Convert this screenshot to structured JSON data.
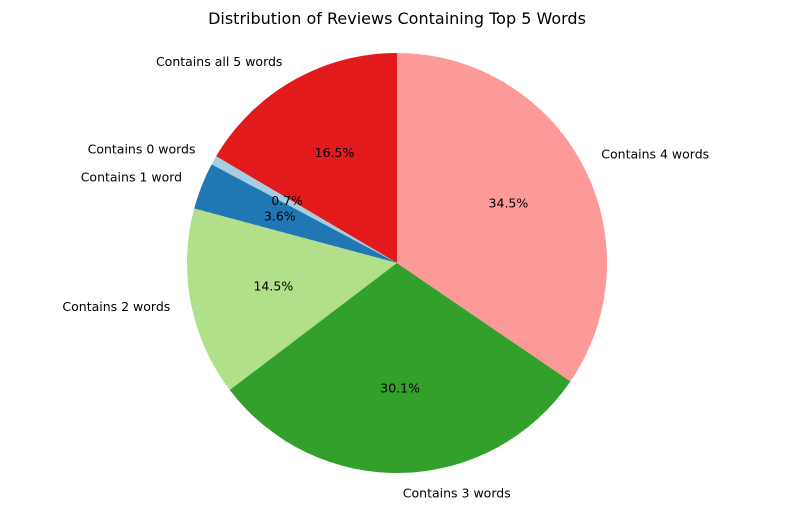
{
  "chart_data": {
    "type": "pie",
    "title": "Distribution of Reviews Containing Top 5 Words",
    "start_angle_deg": 90,
    "direction": "counterclockwise",
    "slices": [
      {
        "label": "Contains all 5 words",
        "value": 16.5,
        "pct_label": "16.5%",
        "color": "#e31a1c"
      },
      {
        "label": "Contains 0 words",
        "value": 0.7,
        "pct_label": "0.7%",
        "color": "#a6cee3"
      },
      {
        "label": "Contains 1 word",
        "value": 3.6,
        "pct_label": "3.6%",
        "color": "#1f78b4"
      },
      {
        "label": "Contains 2 words",
        "value": 14.5,
        "pct_label": "14.5%",
        "color": "#b2df8a"
      },
      {
        "label": "Contains 3 words",
        "value": 30.1,
        "pct_label": "30.1%",
        "color": "#33a02c"
      },
      {
        "label": "Contains 4 words",
        "value": 34.5,
        "pct_label": "34.5%",
        "color": "#fb9a99"
      }
    ]
  }
}
